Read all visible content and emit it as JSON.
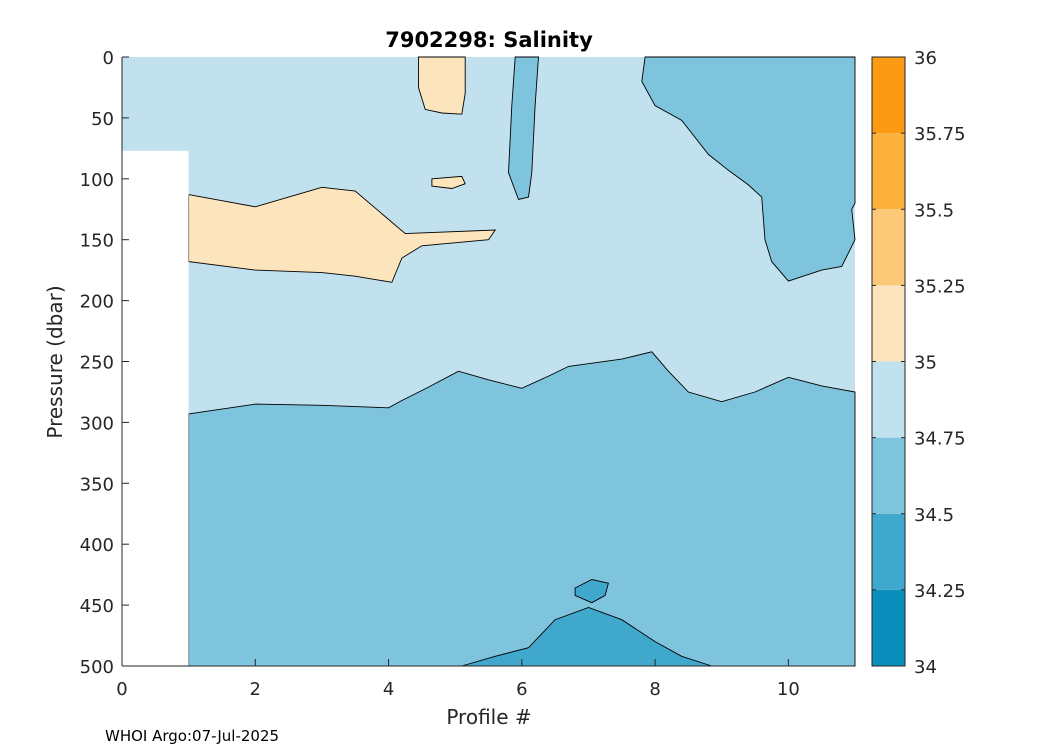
{
  "footer_text": "WHOI Argo:07-Jul-2025",
  "chart_data": {
    "type": "filled-contour",
    "title": "7902298:  Salinity",
    "xlabel": "Profile #",
    "ylabel": "Pressure (dbar)",
    "xlim": [
      0,
      11
    ],
    "ylim": [
      0,
      500
    ],
    "y_reversed": true,
    "xticks": [
      0,
      2,
      4,
      6,
      8,
      10
    ],
    "yticks": [
      0,
      50,
      100,
      150,
      200,
      250,
      300,
      350,
      400,
      450,
      500
    ],
    "colorbar": {
      "min": 34,
      "max": 36,
      "ticks": [
        "34",
        "34.25",
        "34.5",
        "34.75",
        "35",
        "35.25",
        "35.5",
        "35.75",
        "36"
      ],
      "levels": [
        {
          "from": 34.0,
          "to": 34.25,
          "color": "#0a8fbd"
        },
        {
          "from": 34.25,
          "to": 34.5,
          "color": "#41a8cd"
        },
        {
          "from": 34.5,
          "to": 34.75,
          "color": "#7fc4dd"
        },
        {
          "from": 34.75,
          "to": 35.0,
          "color": "#c0e1ed"
        },
        {
          "from": 35.0,
          "to": 35.25,
          "color": "#fce4bc"
        },
        {
          "from": 35.25,
          "to": 35.5,
          "color": "#fcc978"
        },
        {
          "from": 35.5,
          "to": 35.75,
          "color": "#fcb13c"
        },
        {
          "from": 35.75,
          "to": 36.0,
          "color": "#fc9a14"
        }
      ]
    },
    "no_data_region": {
      "x": [
        0,
        1
      ],
      "p": [
        77,
        500
      ]
    },
    "regions": [
      {
        "name": "fresh-deep-layer",
        "level": "34.5-34.75",
        "color": "#7fc4dd",
        "points": [
          [
            1,
            293
          ],
          [
            2,
            285
          ],
          [
            3,
            286
          ],
          [
            4,
            288
          ],
          [
            4.2,
            282
          ],
          [
            4.6,
            271
          ],
          [
            5.05,
            258
          ],
          [
            5.5,
            265
          ],
          [
            6,
            272
          ],
          [
            6.4,
            262
          ],
          [
            6.7,
            254
          ],
          [
            7.5,
            248
          ],
          [
            7.95,
            242
          ],
          [
            8.2,
            258
          ],
          [
            8.5,
            275
          ],
          [
            9,
            283
          ],
          [
            9.5,
            275
          ],
          [
            10,
            263
          ],
          [
            10.5,
            270
          ],
          [
            11,
            275
          ],
          [
            11,
            500
          ],
          [
            1,
            500
          ]
        ]
      },
      {
        "name": "deep-min-core",
        "level": "34.25-34.5",
        "color": "#41a8cd",
        "points": [
          [
            5.1,
            500
          ],
          [
            5.6,
            492
          ],
          [
            6.1,
            485
          ],
          [
            6.5,
            462
          ],
          [
            7,
            452
          ],
          [
            7.5,
            462
          ],
          [
            8,
            480
          ],
          [
            8.4,
            492
          ],
          [
            8.85,
            500
          ]
        ]
      },
      {
        "name": "deep-min-blob",
        "level": "34.25-34.5",
        "color": "#41a8cd",
        "points": [
          [
            6.8,
            436
          ],
          [
            7.05,
            429
          ],
          [
            7.3,
            432
          ],
          [
            7.25,
            442
          ],
          [
            7.05,
            448
          ],
          [
            6.8,
            442
          ]
        ]
      },
      {
        "name": "surface-low-east",
        "level": "34.5-34.75",
        "color": "#7fc4dd",
        "points": [
          [
            7.85,
            0
          ],
          [
            11,
            0
          ],
          [
            11,
            120
          ],
          [
            10.95,
            125
          ],
          [
            11,
            150
          ],
          [
            10.8,
            172
          ],
          [
            10.5,
            175
          ],
          [
            10,
            184
          ],
          [
            9.75,
            168
          ],
          [
            9.65,
            150
          ],
          [
            9.6,
            115
          ],
          [
            9.4,
            105
          ],
          [
            9.1,
            93
          ],
          [
            8.8,
            80
          ],
          [
            8.4,
            52
          ],
          [
            8,
            40
          ],
          [
            7.8,
            20
          ]
        ]
      },
      {
        "name": "surface-low-tongue",
        "level": "34.5-34.75",
        "color": "#7fc4dd",
        "points": [
          [
            5.9,
            0
          ],
          [
            6.25,
            0
          ],
          [
            6.2,
            40
          ],
          [
            6.15,
            95
          ],
          [
            6.1,
            115
          ],
          [
            5.95,
            117
          ],
          [
            5.8,
            95
          ],
          [
            5.85,
            40
          ]
        ]
      },
      {
        "name": "salty-intrusion",
        "level": "35-35.25",
        "color": "#fce4bc",
        "points": [
          [
            1,
            113
          ],
          [
            1.5,
            118
          ],
          [
            2,
            123
          ],
          [
            2.5,
            115
          ],
          [
            3,
            107
          ],
          [
            3.5,
            110
          ],
          [
            4.25,
            145
          ],
          [
            5.6,
            142
          ],
          [
            5.5,
            150
          ],
          [
            4.5,
            155
          ],
          [
            4.2,
            165
          ],
          [
            4.05,
            185
          ],
          [
            3.5,
            180
          ],
          [
            3,
            177
          ],
          [
            2,
            175
          ],
          [
            1,
            168
          ]
        ]
      },
      {
        "name": "salty-surface-patch",
        "level": "35-35.25",
        "color": "#fce4bc",
        "points": [
          [
            4.45,
            0
          ],
          [
            5.15,
            0
          ],
          [
            5.15,
            30
          ],
          [
            5.1,
            47
          ],
          [
            4.8,
            46
          ],
          [
            4.55,
            43
          ],
          [
            4.45,
            25
          ]
        ]
      },
      {
        "name": "salty-small-patch",
        "level": "35-35.25",
        "color": "#fce4bc",
        "points": [
          [
            4.65,
            100
          ],
          [
            5.1,
            98
          ],
          [
            5.15,
            104
          ],
          [
            4.95,
            108
          ],
          [
            4.65,
            106
          ]
        ]
      }
    ]
  }
}
